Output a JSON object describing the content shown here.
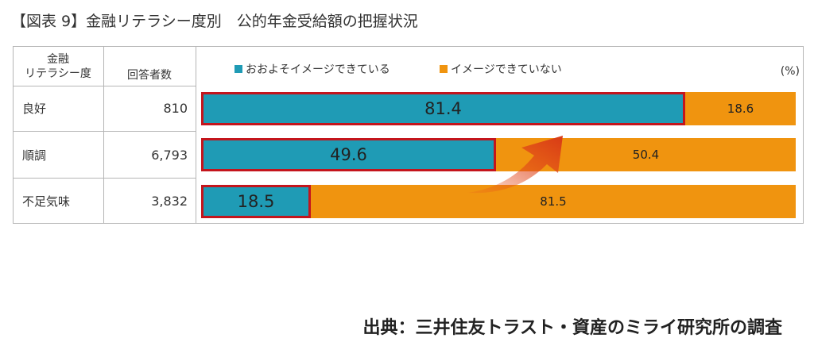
{
  "title": "【図表 9】金融リテラシー度別　公的年金受給額の把握状況",
  "table": {
    "col1_header_line1": "金融",
    "col1_header_line2": "リテラシー度",
    "col2_header": "回答者数",
    "rows": [
      {
        "label": "良好",
        "count": "810"
      },
      {
        "label": "順調",
        "count": "6,793"
      },
      {
        "label": "不足気味",
        "count": "3,832"
      }
    ]
  },
  "unit": "(%)",
  "source": "出典：三井住友トラスト・資産のミライ研究所の調査",
  "colors": {
    "series_a": "#1f9bb5",
    "series_b": "#f0940f",
    "highlight": "#c4151c"
  },
  "chart_data": {
    "type": "bar",
    "stacked": true,
    "orientation": "horizontal",
    "categories": [
      "良好",
      "順調",
      "不足気味"
    ],
    "series": [
      {
        "name": "おおよそイメージできている",
        "values": [
          81.4,
          49.6,
          18.5
        ]
      },
      {
        "name": "イメージできていない",
        "values": [
          18.6,
          50.4,
          81.5
        ]
      }
    ],
    "xlim": [
      0,
      100
    ],
    "legend": "top",
    "unit": "(%)"
  }
}
